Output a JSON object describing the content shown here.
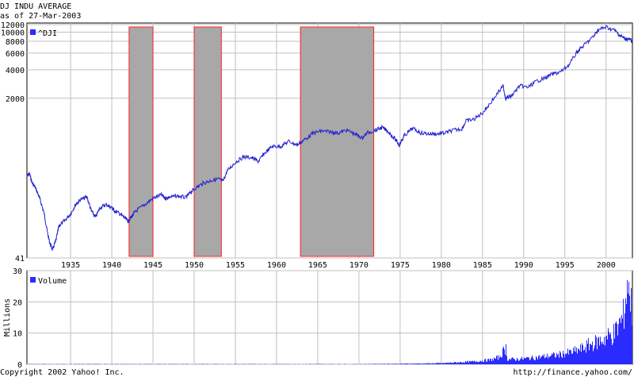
{
  "header": {
    "title": "DJ INDU AVERAGE",
    "date_line": "as of 27-Mar-2003"
  },
  "footer": {
    "copyright": "Copyright 2002 Yahoo! Inc.",
    "url": "http://finance.yahoo.com/"
  },
  "colors": {
    "price_line": "#2020d0",
    "volume_fill": "#2b2bff",
    "shade_fill": "#a8a8a8",
    "shade_border": "#ff2020",
    "grid": "#c0c0c0"
  },
  "chart_data": [
    {
      "type": "line",
      "scale": "log",
      "legend": "^DJI",
      "legend_position": "top-left",
      "grid": true,
      "ylim": [
        41,
        12000
      ],
      "y_ticks": [
        {
          "value": 12000,
          "label": "12000"
        },
        {
          "value": 10000,
          "label": "10000"
        },
        {
          "value": 8000,
          "label": "8000"
        },
        {
          "value": 6000,
          "label": "6000"
        },
        {
          "value": 4000,
          "label": "4000"
        },
        {
          "value": 2000,
          "label": "2000"
        },
        {
          "value": 41,
          "label": "41"
        }
      ],
      "x_ticks": [
        "1935",
        "1940",
        "1945",
        "1950",
        "1955",
        "1960",
        "1965",
        "1970",
        "1975",
        "1980",
        "1985",
        "1990",
        "1995",
        "2000"
      ],
      "xlim": [
        1929.7,
        2003.2
      ],
      "series": [
        {
          "name": "^DJI",
          "x": [
            1929.7,
            1930.0,
            1930.3,
            1930.8,
            1931.3,
            1931.8,
            1932.2,
            1932.5,
            1932.8,
            1933.2,
            1933.6,
            1934.2,
            1935.0,
            1935.6,
            1936.2,
            1937.0,
            1937.5,
            1938.0,
            1938.6,
            1939.3,
            1940.0,
            1940.3,
            1941.0,
            1941.6,
            1942.0,
            1942.4,
            1943.0,
            1944.0,
            1945.0,
            1946.0,
            1946.5,
            1947.0,
            1948.0,
            1949.0,
            1949.5,
            1950.0,
            1951.0,
            1952.0,
            1953.0,
            1953.5,
            1954.0,
            1955.0,
            1956.0,
            1957.0,
            1957.8,
            1958.5,
            1959.5,
            1960.5,
            1961.5,
            1962.5,
            1963.5,
            1964.5,
            1965.5,
            1966.5,
            1967.5,
            1968.5,
            1969.5,
            1970.4,
            1971.0,
            1972.0,
            1972.8,
            1973.5,
            1974.5,
            1974.9,
            1975.5,
            1976.5,
            1977.5,
            1978.5,
            1979.5,
            1980.5,
            1981.5,
            1982.5,
            1983.0,
            1984.0,
            1985.0,
            1986.0,
            1987.5,
            1987.8,
            1988.5,
            1989.5,
            1990.5,
            1991.5,
            1992.5,
            1993.5,
            1994.5,
            1995.5,
            1996.5,
            1997.5,
            1998.5,
            1999.0,
            2000.0,
            2001.0,
            2001.7,
            2002.3,
            2002.8,
            2003.2
          ],
          "y": [
            300,
            320,
            260,
            220,
            170,
            120,
            75,
            58,
            50,
            62,
            90,
            100,
            120,
            150,
            170,
            180,
            130,
            110,
            140,
            150,
            140,
            130,
            120,
            108,
            100,
            112,
            130,
            150,
            175,
            190,
            175,
            180,
            185,
            178,
            200,
            220,
            250,
            270,
            280,
            265,
            340,
            420,
            480,
            470,
            430,
            520,
            620,
            620,
            700,
            640,
            740,
            860,
            900,
            880,
            860,
            920,
            840,
            760,
            860,
            920,
            980,
            900,
            720,
            640,
            800,
            960,
            860,
            840,
            840,
            860,
            920,
            950,
            1150,
            1200,
            1400,
            1800,
            2700,
            2000,
            2100,
            2700,
            2600,
            3000,
            3250,
            3600,
            3800,
            4500,
            6200,
            7500,
            9000,
            10500,
            11300,
            10500,
            9200,
            8500,
            8400,
            8000
          ]
        }
      ],
      "shaded_periods": [
        {
          "start": 1942.1,
          "end": 1945.0
        },
        {
          "start": 1950.0,
          "end": 1953.3
        },
        {
          "start": 1962.9,
          "end": 1971.8
        }
      ]
    },
    {
      "type": "bar",
      "legend": "Volume",
      "legend_position": "top-left",
      "ylabel": "Millions",
      "ylim": [
        0,
        30
      ],
      "y_ticks": [
        0,
        10,
        20,
        30
      ],
      "grid": true,
      "series": [
        {
          "name": "Volume",
          "x": [
            1929.7,
            1932,
            1935,
            1940,
            1945,
            1950,
            1955,
            1960,
            1965,
            1970,
            1975,
            1978,
            1980,
            1982,
            1984,
            1985,
            1986,
            1987,
            1987.8,
            1988,
            1989,
            1990,
            1991,
            1992,
            1993,
            1994,
            1995,
            1996,
            1997,
            1998,
            1999,
            2000,
            2001,
            2001.7,
            2002,
            2002.5,
            2003.2
          ],
          "values": [
            0.1,
            0.1,
            0.1,
            0.1,
            0.1,
            0.1,
            0.1,
            0.1,
            0.1,
            0.1,
            0.2,
            0.3,
            0.4,
            0.7,
            1.0,
            1.3,
            1.6,
            2.5,
            6.0,
            1.8,
            1.8,
            2.0,
            2.3,
            2.6,
            3.0,
            3.3,
            3.8,
            4.5,
            5.5,
            7.0,
            8.0,
            9.5,
            11,
            15,
            16,
            27,
            18
          ]
        }
      ]
    }
  ]
}
